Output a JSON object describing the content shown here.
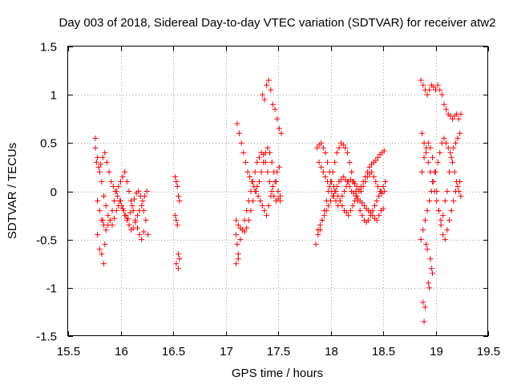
{
  "chart_data": {
    "type": "scatter",
    "title": "Day 003 of 2018, Sidereal Day-to-day VTEC variation (SDTVAR) for receiver atw2",
    "xlabel": "GPS time / hours",
    "ylabel": "SDTVAR / TECUs",
    "xlim": [
      15.5,
      19.5
    ],
    "ylim": [
      -1.5,
      1.5
    ],
    "xticks": [
      "15.5",
      "16",
      "16.5",
      "17",
      "17.5",
      "18",
      "18.5",
      "19",
      "19.5"
    ],
    "yticks": [
      "-1.5",
      "-1",
      "-0.5",
      "0",
      "0.5",
      "1",
      "1.5"
    ],
    "grid": true,
    "marker": "+",
    "series": [
      {
        "name": "SDTVAR",
        "color": "#ff0000",
        "x": [
          15.76,
          15.78,
          15.8,
          15.82,
          15.84,
          15.86,
          15.88,
          15.9,
          15.92,
          15.94,
          15.96,
          15.98,
          16.0,
          16.02,
          16.04,
          16.06,
          16.08,
          16.1,
          16.12,
          16.14,
          16.16,
          16.18,
          16.2,
          16.22,
          16.24,
          16.26,
          15.77,
          15.79,
          15.81,
          15.83,
          15.85,
          15.87,
          15.89,
          15.91,
          15.93,
          15.95,
          15.97,
          15.99,
          16.01,
          16.03,
          16.05,
          16.07,
          16.09,
          16.11,
          16.13,
          16.15,
          16.17,
          16.19,
          16.21,
          16.23,
          16.25,
          15.78,
          15.8,
          15.82,
          15.84,
          15.86,
          15.88,
          15.9,
          15.92,
          15.94,
          15.96,
          15.98,
          16.0,
          16.02,
          16.04,
          16.06,
          16.08,
          16.1,
          16.12,
          16.14,
          16.16,
          16.18,
          16.2,
          16.22,
          15.76,
          15.78,
          15.8,
          15.82,
          15.84,
          15.85,
          15.83,
          16.52,
          16.53,
          16.54,
          16.55,
          16.56,
          16.52,
          16.53,
          16.54,
          16.55,
          16.56,
          16.53,
          16.55,
          17.1,
          17.12,
          17.14,
          17.16,
          17.18,
          17.2,
          17.22,
          17.24,
          17.26,
          17.28,
          17.3,
          17.32,
          17.34,
          17.36,
          17.38,
          17.4,
          17.42,
          17.44,
          17.46,
          17.48,
          17.5,
          17.52,
          17.11,
          17.13,
          17.15,
          17.17,
          17.19,
          17.21,
          17.23,
          17.25,
          17.27,
          17.29,
          17.31,
          17.33,
          17.35,
          17.37,
          17.39,
          17.41,
          17.43,
          17.45,
          17.47,
          17.49,
          17.51,
          17.1,
          17.12,
          17.14,
          17.16,
          17.18,
          17.2,
          17.22,
          17.24,
          17.26,
          17.28,
          17.3,
          17.32,
          17.34,
          17.36,
          17.38,
          17.4,
          17.42,
          17.44,
          17.46,
          17.48,
          17.5,
          17.52,
          17.35,
          17.37,
          17.39,
          17.41,
          17.43,
          17.45,
          17.47,
          17.49,
          17.51,
          17.53,
          17.1,
          17.11,
          17.12,
          17.86,
          17.88,
          17.9,
          17.92,
          17.94,
          17.96,
          17.98,
          18.0,
          18.02,
          18.04,
          18.06,
          18.08,
          18.1,
          18.12,
          18.14,
          18.16,
          18.18,
          18.2,
          18.22,
          18.24,
          18.26,
          18.28,
          18.3,
          18.32,
          18.34,
          18.36,
          18.38,
          18.4,
          18.42,
          18.44,
          18.46,
          18.48,
          18.5,
          18.52,
          17.87,
          17.89,
          17.91,
          17.93,
          17.95,
          17.97,
          17.99,
          18.01,
          18.03,
          18.05,
          18.07,
          18.09,
          18.11,
          18.13,
          18.15,
          18.17,
          18.19,
          18.21,
          18.23,
          18.25,
          18.27,
          18.29,
          18.31,
          18.33,
          18.35,
          18.37,
          18.39,
          18.41,
          18.43,
          18.45,
          18.47,
          18.49,
          18.51,
          17.88,
          17.9,
          17.92,
          17.94,
          17.96,
          17.98,
          18.0,
          18.02,
          18.04,
          18.06,
          18.08,
          18.1,
          18.12,
          18.14,
          18.16,
          18.18,
          18.2,
          18.22,
          18.24,
          18.26,
          18.28,
          18.3,
          18.32,
          18.34,
          18.36,
          18.38,
          18.4,
          18.42,
          18.44,
          18.46,
          18.48,
          18.5,
          17.89,
          17.91,
          17.93,
          17.95,
          17.97,
          17.99,
          18.01,
          18.03,
          18.05,
          18.07,
          18.09,
          18.11,
          18.13,
          18.15,
          18.17,
          18.19,
          18.21,
          18.23,
          18.25,
          18.27,
          18.29,
          18.31,
          18.33,
          18.35,
          18.37,
          18.39,
          18.41,
          18.43,
          18.45,
          18.47,
          18.49,
          18.51,
          18.86,
          18.88,
          18.9,
          18.92,
          18.94,
          18.96,
          18.98,
          19.0,
          19.02,
          19.04,
          19.06,
          19.08,
          19.1,
          19.12,
          19.14,
          19.16,
          19.18,
          19.2,
          19.22,
          19.24,
          18.87,
          18.89,
          18.91,
          18.93,
          18.95,
          18.97,
          18.99,
          19.01,
          19.03,
          19.05,
          19.07,
          19.09,
          19.11,
          19.13,
          19.15,
          19.17,
          19.19,
          19.21,
          19.23,
          18.86,
          18.88,
          18.9,
          18.92,
          18.94,
          18.96,
          18.98,
          19.0,
          19.02,
          19.04,
          19.06,
          19.08,
          19.1,
          19.12,
          19.14,
          19.16,
          19.18,
          19.2,
          19.22,
          19.24,
          18.87,
          18.89,
          18.91,
          18.93,
          18.95,
          18.97,
          18.99,
          19.01,
          19.03,
          19.05,
          19.07,
          19.09,
          19.11,
          19.13,
          19.15,
          19.17,
          19.19,
          19.21,
          19.23,
          18.88,
          18.89,
          18.9,
          18.91,
          18.92,
          18.93,
          18.94,
          18.95,
          18.96,
          18.97
        ],
        "y": [
          0.45,
          0.35,
          0.2,
          0.1,
          -0.05,
          -0.15,
          -0.25,
          -0.3,
          -0.35,
          -0.28,
          -0.2,
          -0.15,
          -0.1,
          -0.18,
          -0.25,
          -0.3,
          -0.35,
          -0.4,
          -0.38,
          -0.32,
          -0.25,
          -0.2,
          -0.15,
          -0.2,
          -0.3,
          -0.45,
          0.3,
          0.25,
          0.28,
          0.35,
          0.4,
          0.3,
          0.2,
          0.1,
          0.05,
          0.0,
          -0.05,
          -0.1,
          -0.15,
          -0.2,
          -0.25,
          -0.28,
          -0.22,
          -0.15,
          -0.08,
          -0.02,
          0.0,
          -0.05,
          -0.1,
          -0.05,
          0.0,
          -0.1,
          -0.2,
          -0.3,
          -0.35,
          -0.4,
          -0.35,
          -0.3,
          -0.2,
          -0.1,
          0.0,
          0.05,
          0.1,
          0.15,
          0.2,
          0.1,
          0.0,
          -0.1,
          -0.2,
          -0.3,
          -0.38,
          -0.45,
          -0.5,
          -0.42,
          0.55,
          -0.45,
          -0.6,
          -0.65,
          -0.75,
          -0.55,
          -0.3,
          0.15,
          0.1,
          0.05,
          -0.05,
          -0.1,
          -0.25,
          -0.3,
          -0.35,
          -0.65,
          -0.7,
          -0.75,
          -0.8,
          -0.75,
          -0.65,
          -0.5,
          -0.4,
          -0.3,
          -0.2,
          -0.1,
          0.0,
          0.1,
          0.2,
          0.3,
          0.35,
          0.4,
          0.38,
          0.3,
          0.2,
          0.1,
          0.0,
          -0.05,
          -0.1,
          -0.08,
          -0.05,
          0.7,
          0.6,
          0.5,
          0.4,
          0.3,
          0.2,
          0.15,
          0.1,
          0.05,
          0.0,
          -0.05,
          -0.1,
          -0.15,
          -0.2,
          -0.25,
          -0.15,
          -0.05,
          0.05,
          0.1,
          0.2,
          0.25,
          -0.3,
          -0.35,
          -0.38,
          -0.4,
          -0.42,
          -0.38,
          -0.3,
          -0.2,
          -0.1,
          0.0,
          0.05,
          0.1,
          0.2,
          0.3,
          0.4,
          0.45,
          0.4,
          0.3,
          0.2,
          0.1,
          0.0,
          -0.1,
          1.0,
          0.95,
          1.1,
          1.15,
          1.05,
          0.9,
          0.85,
          0.75,
          0.65,
          0.6,
          -0.45,
          -0.55,
          -0.7,
          -0.55,
          -0.45,
          -0.4,
          -0.3,
          -0.2,
          -0.1,
          0.0,
          0.1,
          0.2,
          0.3,
          0.4,
          0.45,
          0.5,
          0.48,
          0.45,
          0.4,
          0.3,
          0.2,
          0.1,
          0.0,
          -0.1,
          -0.2,
          -0.25,
          -0.3,
          -0.32,
          -0.3,
          -0.25,
          -0.2,
          -0.15,
          -0.1,
          -0.05,
          0.0,
          0.05,
          0.1,
          0.45,
          0.48,
          0.5,
          0.45,
          0.4,
          0.3,
          0.2,
          0.1,
          0.05,
          0.0,
          -0.05,
          -0.1,
          -0.15,
          -0.2,
          -0.22,
          -0.25,
          -0.2,
          -0.15,
          -0.1,
          -0.05,
          0.0,
          0.05,
          0.1,
          0.15,
          0.2,
          0.25,
          0.28,
          0.3,
          0.32,
          0.35,
          0.38,
          0.4,
          0.42,
          -0.4,
          -0.35,
          -0.3,
          -0.25,
          -0.2,
          -0.15,
          -0.1,
          -0.05,
          0.0,
          0.05,
          0.1,
          0.12,
          0.15,
          0.12,
          0.1,
          0.05,
          0.0,
          -0.02,
          -0.05,
          -0.08,
          -0.1,
          -0.12,
          -0.15,
          -0.18,
          -0.2,
          -0.22,
          -0.25,
          -0.28,
          -0.3,
          -0.25,
          -0.2,
          -0.18,
          0.3,
          0.25,
          0.2,
          0.15,
          0.1,
          0.05,
          0.0,
          -0.05,
          -0.1,
          -0.15,
          -0.1,
          -0.05,
          0.0,
          0.05,
          0.1,
          0.12,
          0.1,
          0.08,
          0.05,
          0.02,
          0.0,
          0.05,
          0.1,
          0.15,
          0.18,
          0.2,
          0.15,
          0.1,
          0.05,
          0.0,
          -0.02,
          0.0,
          1.15,
          1.1,
          1.05,
          1.0,
          1.05,
          1.1,
          1.08,
          1.05,
          1.1,
          1.05,
          1.0,
          0.9,
          0.85,
          0.8,
          0.78,
          0.75,
          0.78,
          0.8,
          0.75,
          0.8,
          0.6,
          0.5,
          0.4,
          0.3,
          0.2,
          0.1,
          0.0,
          -0.1,
          -0.2,
          -0.3,
          -0.25,
          -0.1,
          0.0,
          0.2,
          0.35,
          0.45,
          0.5,
          0.55,
          0.6,
          -0.5,
          -0.4,
          -0.3,
          -0.2,
          -0.1,
          0.0,
          0.1,
          0.2,
          0.3,
          0.4,
          0.5,
          0.55,
          0.5,
          0.45,
          0.4,
          0.3,
          0.2,
          0.1,
          0.0,
          -0.05,
          0.2,
          0.35,
          0.45,
          0.5,
          0.45,
          0.35,
          0.2,
          0.0,
          -0.2,
          -0.35,
          -0.45,
          -0.5,
          -0.4,
          -0.3,
          -0.2,
          -0.1,
          0.0,
          0.05,
          0.1,
          -1.15,
          -1.35,
          -1.2,
          -0.55,
          -0.6,
          -0.95,
          -1.0,
          -0.7,
          -0.8,
          -0.85
        ]
      }
    ]
  }
}
